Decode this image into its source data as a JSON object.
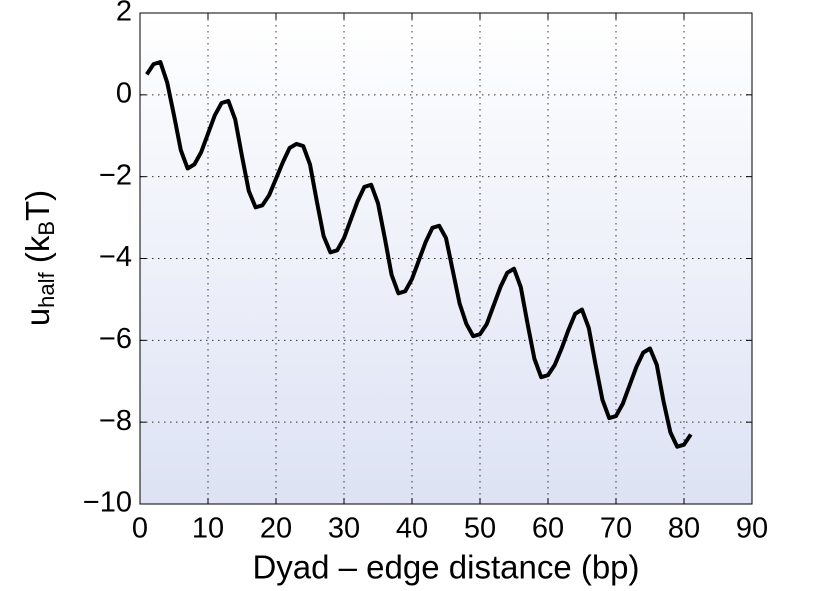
{
  "chart_data": {
    "type": "line",
    "x_label": "Dyad – edge distance (bp)",
    "y_label": [
      "u",
      "half",
      " (k",
      "B",
      "T)"
    ],
    "x": [
      1,
      2,
      3,
      4,
      5,
      6,
      7,
      8,
      9,
      10,
      11,
      12,
      13,
      14,
      15,
      16,
      17,
      18,
      19,
      20,
      21,
      22,
      23,
      24,
      25,
      26,
      27,
      28,
      29,
      30,
      31,
      32,
      33,
      34,
      35,
      36,
      37,
      38,
      39,
      40,
      41,
      42,
      43,
      44,
      45,
      46,
      47,
      48,
      49,
      50,
      51,
      52,
      53,
      54,
      55,
      56,
      57,
      58,
      59,
      60,
      61,
      62,
      63,
      64,
      65,
      66,
      67,
      68,
      69,
      70,
      71,
      72,
      73,
      74,
      75,
      76,
      77,
      78,
      79,
      80,
      81
    ],
    "series": [
      {
        "color": "#000000",
        "values": [
          0.5,
          0.75,
          0.8,
          0.3,
          -0.5,
          -1.35,
          -1.8,
          -1.7,
          -1.4,
          -0.95,
          -0.5,
          -0.2,
          -0.15,
          -0.6,
          -1.5,
          -2.35,
          -2.75,
          -2.7,
          -2.45,
          -2.05,
          -1.65,
          -1.3,
          -1.2,
          -1.25,
          -1.7,
          -2.6,
          -3.45,
          -3.85,
          -3.8,
          -3.5,
          -3.05,
          -2.6,
          -2.25,
          -2.2,
          -2.65,
          -3.5,
          -4.4,
          -4.85,
          -4.8,
          -4.5,
          -4.05,
          -3.6,
          -3.25,
          -3.2,
          -3.5,
          -4.3,
          -5.1,
          -5.6,
          -5.9,
          -5.85,
          -5.6,
          -5.15,
          -4.7,
          -4.35,
          -4.25,
          -4.7,
          -5.6,
          -6.45,
          -6.9,
          -6.85,
          -6.6,
          -6.2,
          -5.75,
          -5.35,
          -5.25,
          -5.7,
          -6.6,
          -7.45,
          -7.9,
          -7.85,
          -7.55,
          -7.1,
          -6.65,
          -6.3,
          -6.2,
          -6.6,
          -7.5,
          -8.25,
          -8.6,
          -8.55,
          -8.3
        ]
      }
    ],
    "xlim": [
      0,
      90
    ],
    "xticks": [
      0,
      10,
      20,
      30,
      40,
      50,
      60,
      70,
      80,
      90
    ],
    "ylim": [
      -10,
      2
    ],
    "yticks": [
      {
        "value": -10,
        "label": "−10"
      },
      {
        "value": -8,
        "label": "−8"
      },
      {
        "value": -6,
        "label": "−6"
      },
      {
        "value": -4,
        "label": "−4"
      },
      {
        "value": -2,
        "label": "−2"
      },
      0,
      2
    ],
    "grid": true
  }
}
